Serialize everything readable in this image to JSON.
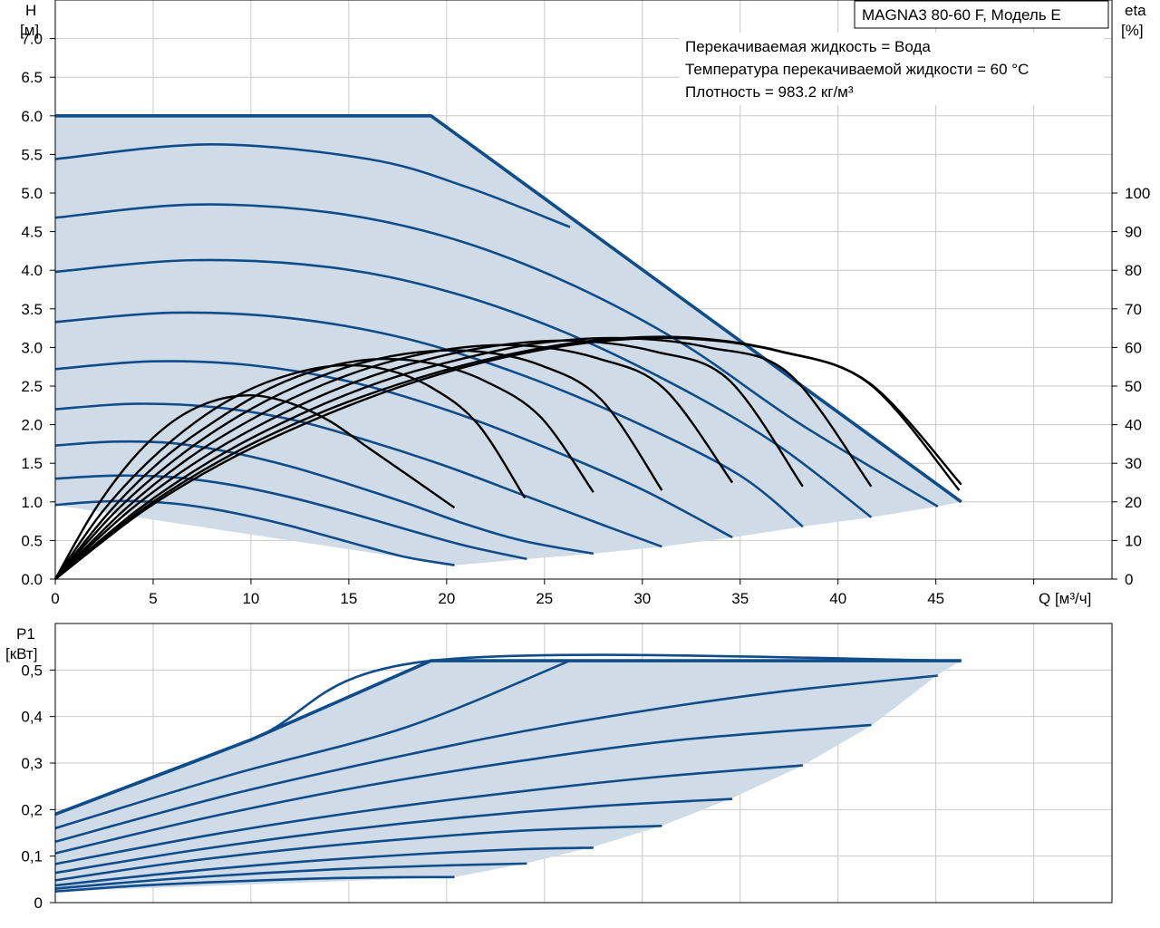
{
  "title": "MAGNA3 80-60 F, Модель E",
  "annotations": [
    "Перекачиваемая жидкость = Вода",
    "Температура перекачиваемой жидкости = 60 °C",
    "Плотность = 983.2 кг/м³"
  ],
  "colors": {
    "curve": "#0f4c8a",
    "area": "#cfdbe7",
    "efficiency": "#000000",
    "grid": "#c8c8c8"
  },
  "chart_data": [
    {
      "type": "line",
      "name": "head",
      "ylabel_line1": "H",
      "ylabel_line2": "[м]",
      "y2label_line1": "eta",
      "y2label_line2": "[%]",
      "xlabel": "Q [м³/ч]",
      "xlim": [
        0,
        54
      ],
      "ylim": [
        0,
        7.5
      ],
      "y2lim": [
        0,
        150
      ],
      "grid": true,
      "x_ticks": [
        "0",
        "5",
        "10",
        "15",
        "20",
        "25",
        "30",
        "35",
        "40",
        "45"
      ],
      "y_ticks": [
        "0.0",
        "0.5",
        "1.0",
        "1.5",
        "2.0",
        "2.5",
        "3.0",
        "3.5",
        "4.0",
        "4.5",
        "5.0",
        "5.5",
        "6.0",
        "6.5",
        "7.0"
      ],
      "y2_ticks": [
        "0",
        "10",
        "20",
        "30",
        "40",
        "50",
        "60",
        "70",
        "80",
        "90",
        "100"
      ],
      "envelope": [
        [
          0,
          6.0
        ],
        [
          19.2,
          6.0
        ],
        [
          46.3,
          1.0
        ]
      ],
      "min_boundary": [
        [
          20.4,
          0.18
        ],
        [
          24.1,
          0.26
        ],
        [
          27.5,
          0.33
        ],
        [
          31.0,
          0.42
        ],
        [
          34.6,
          0.54
        ],
        [
          38.2,
          0.68
        ],
        [
          41.7,
          0.8
        ],
        [
          45.1,
          0.94
        ],
        [
          46.3,
          1.0
        ]
      ],
      "head_curves": [
        [
          [
            0,
            0.96
          ],
          [
            2,
            1.0
          ],
          [
            4,
            1.01
          ],
          [
            6,
            0.98
          ],
          [
            8,
            0.91
          ],
          [
            10,
            0.81
          ],
          [
            12,
            0.69
          ],
          [
            14,
            0.55
          ],
          [
            16,
            0.41
          ],
          [
            18,
            0.28
          ],
          [
            20.4,
            0.18
          ]
        ],
        [
          [
            0,
            1.3
          ],
          [
            3,
            1.34
          ],
          [
            6,
            1.32
          ],
          [
            9,
            1.22
          ],
          [
            12,
            1.06
          ],
          [
            15,
            0.86
          ],
          [
            18,
            0.64
          ],
          [
            21,
            0.43
          ],
          [
            24.1,
            0.26
          ]
        ],
        [
          [
            0,
            1.73
          ],
          [
            3,
            1.78
          ],
          [
            6,
            1.76
          ],
          [
            9,
            1.64
          ],
          [
            12,
            1.46
          ],
          [
            15,
            1.23
          ],
          [
            18,
            0.98
          ],
          [
            21,
            0.71
          ],
          [
            24,
            0.49
          ],
          [
            27.5,
            0.33
          ]
        ],
        [
          [
            0,
            2.2
          ],
          [
            4,
            2.27
          ],
          [
            8,
            2.23
          ],
          [
            12,
            2.07
          ],
          [
            16,
            1.79
          ],
          [
            20,
            1.46
          ],
          [
            24,
            1.08
          ],
          [
            28,
            0.7
          ],
          [
            31.0,
            0.42
          ]
        ],
        [
          [
            0,
            2.72
          ],
          [
            5,
            2.82
          ],
          [
            10,
            2.77
          ],
          [
            15,
            2.56
          ],
          [
            20,
            2.19
          ],
          [
            25,
            1.71
          ],
          [
            30,
            1.16
          ],
          [
            34.6,
            0.54
          ]
        ],
        [
          [
            0,
            3.33
          ],
          [
            6,
            3.45
          ],
          [
            12,
            3.38
          ],
          [
            18,
            3.11
          ],
          [
            24,
            2.63
          ],
          [
            30,
            1.99
          ],
          [
            35,
            1.34
          ],
          [
            38.2,
            0.68
          ]
        ],
        [
          [
            0,
            3.98
          ],
          [
            7,
            4.13
          ],
          [
            14,
            4.04
          ],
          [
            20,
            3.73
          ],
          [
            26,
            3.2
          ],
          [
            32,
            2.47
          ],
          [
            37,
            1.72
          ],
          [
            41.7,
            0.8
          ]
        ],
        [
          [
            0,
            4.68
          ],
          [
            7,
            4.85
          ],
          [
            14,
            4.75
          ],
          [
            20,
            4.43
          ],
          [
            26,
            3.86
          ],
          [
            32,
            3.06
          ],
          [
            38,
            2.02
          ],
          [
            45.1,
            0.94
          ]
        ],
        [
          [
            0,
            5.44
          ],
          [
            8,
            5.63
          ],
          [
            16,
            5.44
          ],
          [
            21,
            5.08
          ],
          [
            26.3,
            4.56
          ]
        ]
      ],
      "efficiency_curves": [
        [
          [
            0,
            0
          ],
          [
            2,
            17.8
          ],
          [
            4,
            31.4
          ],
          [
            6,
            40.8
          ],
          [
            8,
            46.0
          ],
          [
            10,
            47.6
          ],
          [
            12,
            45.6
          ],
          [
            14,
            41.0
          ],
          [
            16,
            34.0
          ],
          [
            18,
            27.0
          ],
          [
            20.4,
            18.5
          ]
        ],
        [
          [
            0,
            0
          ],
          [
            2.4,
            17.4
          ],
          [
            4.8,
            30.6
          ],
          [
            7.2,
            40.8
          ],
          [
            9.6,
            48.3
          ],
          [
            12,
            53.0
          ],
          [
            14.4,
            55.3
          ],
          [
            16.8,
            54.4
          ],
          [
            19.2,
            49.7
          ],
          [
            21.6,
            40.1
          ],
          [
            24,
            21.0
          ]
        ],
        [
          [
            0,
            0
          ],
          [
            2.8,
            17.6
          ],
          [
            5.5,
            31.1
          ],
          [
            8.3,
            41.4
          ],
          [
            11,
            49.5
          ],
          [
            13.8,
            54.8
          ],
          [
            16.5,
            57.0
          ],
          [
            19.3,
            55.8
          ],
          [
            22,
            51.2
          ],
          [
            24.8,
            42.0
          ],
          [
            27.5,
            22.5
          ]
        ],
        [
          [
            0,
            0
          ],
          [
            3.1,
            17.6
          ],
          [
            6.2,
            31.3
          ],
          [
            9.3,
            42.0
          ],
          [
            12.4,
            50.1
          ],
          [
            15.5,
            55.8
          ],
          [
            18.6,
            58.8
          ],
          [
            21.7,
            58.9
          ],
          [
            24.8,
            55.4
          ],
          [
            27.9,
            46.5
          ],
          [
            31,
            23.0
          ]
        ],
        [
          [
            0,
            0
          ],
          [
            3.5,
            17.8
          ],
          [
            6.9,
            31.6
          ],
          [
            10.4,
            42.4
          ],
          [
            13.8,
            50.6
          ],
          [
            17.3,
            56.6
          ],
          [
            20.8,
            60.0
          ],
          [
            24.2,
            60.4
          ],
          [
            27.7,
            57.2
          ],
          [
            31.1,
            49.4
          ],
          [
            34.6,
            25.0
          ]
        ],
        [
          [
            0,
            0
          ],
          [
            3.8,
            17.8
          ],
          [
            7.6,
            31.6
          ],
          [
            11.5,
            42.6
          ],
          [
            15.3,
            51.0
          ],
          [
            19.1,
            57.0
          ],
          [
            22.9,
            60.7
          ],
          [
            26.7,
            61.7
          ],
          [
            30.6,
            59.0
          ],
          [
            34.4,
            51.7
          ],
          [
            38.2,
            24.0
          ]
        ],
        [
          [
            0,
            0
          ],
          [
            4.2,
            17.9
          ],
          [
            8.3,
            31.7
          ],
          [
            12.5,
            42.6
          ],
          [
            16.7,
            51.2
          ],
          [
            20.9,
            57.2
          ],
          [
            25,
            61.3
          ],
          [
            29.2,
            62.4
          ],
          [
            33.4,
            60.0
          ],
          [
            37.5,
            53.2
          ],
          [
            41.7,
            24.0
          ]
        ],
        [
          [
            0,
            0
          ],
          [
            4.6,
            18.0
          ],
          [
            9.2,
            31.8
          ],
          [
            13.9,
            42.7
          ],
          [
            18.5,
            51.3
          ],
          [
            23.1,
            57.6
          ],
          [
            27.7,
            61.5
          ],
          [
            32.3,
            62.3
          ],
          [
            37,
            59.0
          ],
          [
            41.6,
            50.6
          ],
          [
            46.2,
            23.0
          ]
        ],
        [
          [
            0,
            0
          ],
          [
            4.6,
            18.6
          ],
          [
            9.2,
            32.8
          ],
          [
            13.9,
            43.8
          ],
          [
            18.5,
            52.0
          ],
          [
            23.1,
            58.1
          ],
          [
            27.7,
            61.9
          ],
          [
            32.3,
            62.6
          ],
          [
            37,
            59.1
          ],
          [
            41.6,
            50.8
          ],
          [
            46.3,
            24.5
          ]
        ]
      ]
    },
    {
      "type": "line",
      "name": "power",
      "ylabel_line1": "P1",
      "ylabel_line2": "[кВт]",
      "xlim": [
        0,
        54
      ],
      "ylim": [
        0,
        0.6
      ],
      "grid": true,
      "y_ticks": [
        "0",
        "0,1",
        "0,2",
        "0,3",
        "0,4",
        "0,5"
      ],
      "envelope": [
        [
          0,
          0.19
        ],
        [
          10,
          0.35
        ],
        [
          19.2,
          0.52
        ],
        [
          46.3,
          0.52
        ]
      ],
      "min_boundary": [
        [
          20.4,
          0.055
        ],
        [
          24.1,
          0.085
        ],
        [
          27.5,
          0.12
        ],
        [
          31.0,
          0.165
        ],
        [
          34.6,
          0.225
        ],
        [
          38.2,
          0.295
        ],
        [
          41.7,
          0.38
        ],
        [
          45.1,
          0.49
        ],
        [
          46.3,
          0.52
        ]
      ],
      "power_curves": [
        [
          [
            0,
            0.024
          ],
          [
            4,
            0.036
          ],
          [
            8,
            0.044
          ],
          [
            12,
            0.05
          ],
          [
            16,
            0.054
          ],
          [
            20.4,
            0.055
          ]
        ],
        [
          [
            0,
            0.03
          ],
          [
            5,
            0.048
          ],
          [
            10,
            0.062
          ],
          [
            15,
            0.073
          ],
          [
            20,
            0.08
          ],
          [
            24.1,
            0.084
          ]
        ],
        [
          [
            0,
            0.037
          ],
          [
            6,
            0.064
          ],
          [
            12,
            0.086
          ],
          [
            18,
            0.103
          ],
          [
            24,
            0.115
          ],
          [
            27.5,
            0.118
          ]
        ],
        [
          [
            0,
            0.048
          ],
          [
            6,
            0.085
          ],
          [
            12,
            0.114
          ],
          [
            18,
            0.137
          ],
          [
            24,
            0.155
          ],
          [
            31.0,
            0.165
          ]
        ],
        [
          [
            0,
            0.064
          ],
          [
            7,
            0.112
          ],
          [
            14,
            0.152
          ],
          [
            21,
            0.184
          ],
          [
            28,
            0.208
          ],
          [
            34.6,
            0.223
          ]
        ],
        [
          [
            0,
            0.083
          ],
          [
            8,
            0.146
          ],
          [
            16,
            0.198
          ],
          [
            24,
            0.24
          ],
          [
            31,
            0.271
          ],
          [
            38.2,
            0.295
          ]
        ],
        [
          [
            0,
            0.106
          ],
          [
            8,
            0.185
          ],
          [
            16,
            0.252
          ],
          [
            24,
            0.306
          ],
          [
            32,
            0.35
          ],
          [
            41.7,
            0.382
          ]
        ],
        [
          [
            0,
            0.131
          ],
          [
            9,
            0.233
          ],
          [
            18,
            0.318
          ],
          [
            26,
            0.384
          ],
          [
            36,
            0.448
          ],
          [
            45.1,
            0.488
          ]
        ],
        [
          [
            0,
            0.19
          ],
          [
            10,
            0.35
          ],
          [
            19.2,
            0.52
          ],
          [
            46.3,
            0.52
          ]
        ],
        [
          [
            0,
            0.16
          ],
          [
            9,
            0.275
          ],
          [
            18,
            0.378
          ],
          [
            26.3,
            0.52
          ]
        ]
      ]
    }
  ]
}
